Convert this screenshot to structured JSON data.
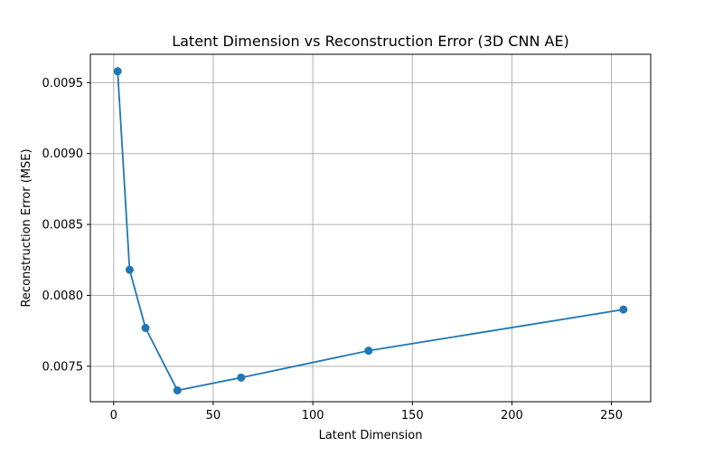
{
  "chart_data": {
    "type": "line",
    "title": "Latent Dimension vs Reconstruction Error (3D CNN AE)",
    "xlabel": "Latent Dimension",
    "ylabel": "Reconstruction Error (MSE)",
    "xlim": [
      -11.7,
      269.7
    ],
    "ylim": [
      0.00725,
      0.0097
    ],
    "xticks": [
      0,
      50,
      100,
      150,
      200,
      250
    ],
    "xtick_labels": [
      "0",
      "50",
      "100",
      "150",
      "200",
      "250"
    ],
    "yticks": [
      0.0075,
      0.008,
      0.0085,
      0.009,
      0.0095
    ],
    "ytick_labels": [
      "0.0075",
      "0.0080",
      "0.0085",
      "0.0090",
      "0.0095"
    ],
    "grid": true,
    "marker": "circle",
    "series": [
      {
        "color": "#1f77b4",
        "x": [
          2,
          8,
          16,
          32,
          64,
          128,
          256
        ],
        "y": [
          0.00958,
          0.00818,
          0.00777,
          0.00733,
          0.00742,
          0.00761,
          0.0079
        ]
      }
    ]
  }
}
